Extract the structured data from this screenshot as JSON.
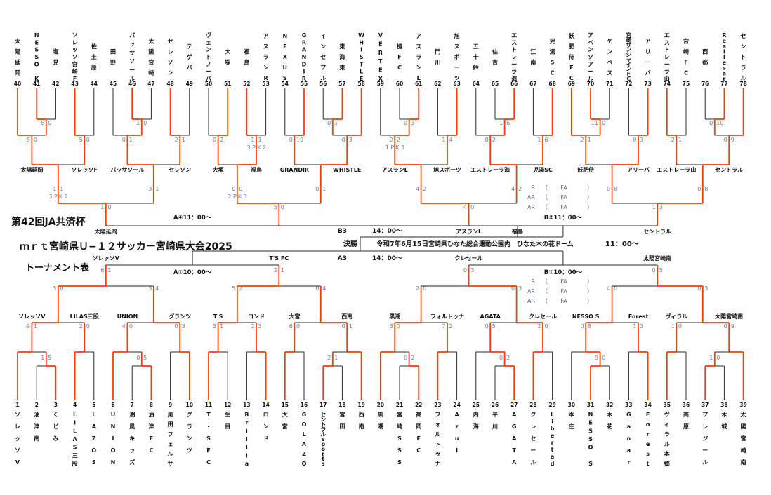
{
  "header": {
    "line1": "第42回JA共済杯",
    "line2": "ｍｒｔ宮崎県Ｕ−１２サッカー宮崎県大会2025",
    "line3": "トーナメント表"
  },
  "final_info": {
    "label": "決勝",
    "date": "令和7年6月15日",
    "venue": "宮崎県ひなた総合運動公園内　ひなた木の花ドーム",
    "time": "11：00～"
  },
  "center_matches": {
    "b3": {
      "code": "B3",
      "time": "14：00～"
    },
    "a3": {
      "code": "A3",
      "time": "14：00～"
    }
  },
  "referee": {
    "rows": [
      "R",
      "AR",
      "AR"
    ],
    "value": "FA",
    "open": "（",
    "close": "）"
  },
  "colors": {
    "accent": "#ff3c00",
    "line": "#2b2b2b",
    "score": "#6d7b9c"
  },
  "teams": [
    {
      "n": 1,
      "name": "ソレッソV"
    },
    {
      "n": 2,
      "name": "油津南"
    },
    {
      "n": 3,
      "name": "くどみ"
    },
    {
      "n": 4,
      "name": "LILAS三股"
    },
    {
      "n": 5,
      "name": "LAZOS"
    },
    {
      "n": 6,
      "name": "UNION"
    },
    {
      "n": 7,
      "name": "潮風キッズ"
    },
    {
      "n": 8,
      "name": "油津FC"
    },
    {
      "n": 9,
      "name": "風田フェルサ"
    },
    {
      "n": 10,
      "name": "グランツ"
    },
    {
      "n": 11,
      "name": "T・SFC"
    },
    {
      "n": 12,
      "name": "生目"
    },
    {
      "n": 13,
      "name": "Brillia"
    },
    {
      "n": 14,
      "name": "ロンド"
    },
    {
      "n": 15,
      "name": "大宮"
    },
    {
      "n": 16,
      "name": "GOLAZO"
    },
    {
      "n": 17,
      "name": "セントラルsports"
    },
    {
      "n": 18,
      "name": "宮田"
    },
    {
      "n": 19,
      "name": "西南"
    },
    {
      "n": 20,
      "name": "黒潮"
    },
    {
      "n": 21,
      "name": "宮崎SSS"
    },
    {
      "n": 22,
      "name": "高岡FC"
    },
    {
      "n": 23,
      "name": "フォルトゥナ"
    },
    {
      "n": 24,
      "name": "Azul"
    },
    {
      "n": 25,
      "name": "内海"
    },
    {
      "n": 26,
      "name": "平川"
    },
    {
      "n": 27,
      "name": "AGATA"
    },
    {
      "n": 28,
      "name": "クレセール"
    },
    {
      "n": 29,
      "name": "Libertad"
    },
    {
      "n": 30,
      "name": "本庄"
    },
    {
      "n": 31,
      "name": "NESSO S"
    },
    {
      "n": 32,
      "name": "木花"
    },
    {
      "n": 33,
      "name": "Ganar"
    },
    {
      "n": 34,
      "name": "Forest"
    },
    {
      "n": 35,
      "name": "ヴィラル本郷"
    },
    {
      "n": 36,
      "name": "高原"
    },
    {
      "n": 37,
      "name": "プレジール"
    },
    {
      "n": 38,
      "name": "木城"
    },
    {
      "n": 39,
      "name": "太陽宮崎南"
    },
    {
      "n": 40,
      "name": "太陽延岡"
    },
    {
      "n": 41,
      "name": "NESSO K"
    },
    {
      "n": 42,
      "name": "塩見"
    },
    {
      "n": 43,
      "name": "ソレッソ宮崎F"
    },
    {
      "n": 44,
      "name": "佐土原"
    },
    {
      "n": 45,
      "name": "田野"
    },
    {
      "n": 46,
      "name": "パッサソール"
    },
    {
      "n": 47,
      "name": "太陽宮崎"
    },
    {
      "n": 48,
      "name": "セレソン"
    },
    {
      "n": 49,
      "name": "テゲバ"
    },
    {
      "n": 50,
      "name": "ヴェントノーバ"
    },
    {
      "n": 51,
      "name": "大塚"
    },
    {
      "n": 52,
      "name": "福島"
    },
    {
      "n": 53,
      "name": "アスランR"
    },
    {
      "n": 54,
      "name": "NEXUS"
    },
    {
      "n": 55,
      "name": "GRANDIR"
    },
    {
      "n": 56,
      "name": "インセプル"
    },
    {
      "n": 57,
      "name": "東海東"
    },
    {
      "n": 58,
      "name": "WHISTLE"
    },
    {
      "n": 59,
      "name": "VERTEX"
    },
    {
      "n": 60,
      "name": "檍FC"
    },
    {
      "n": 61,
      "name": "アスランL"
    },
    {
      "n": 62,
      "name": "門川"
    },
    {
      "n": 63,
      "name": "旭スポーツ"
    },
    {
      "n": 64,
      "name": "五十鈴"
    },
    {
      "n": 65,
      "name": "住吉"
    },
    {
      "n": 66,
      "name": "エストレーラ海"
    },
    {
      "n": 67,
      "name": "江南"
    },
    {
      "n": 68,
      "name": "児湯SC"
    },
    {
      "n": 69,
      "name": "飫肥侍FC"
    },
    {
      "n": 70,
      "name": "アベンソアール"
    },
    {
      "n": 71,
      "name": "ケンペス"
    },
    {
      "n": 72,
      "name": "宮崎サンシャインFC"
    },
    {
      "n": 73,
      "name": "アリーバ"
    },
    {
      "n": 74,
      "name": "エストレーラ山"
    },
    {
      "n": 75,
      "name": "宮崎FC"
    },
    {
      "n": 76,
      "name": "西都"
    },
    {
      "n": 77,
      "name": "Resileser"
    },
    {
      "n": 78,
      "name": "セントラル"
    }
  ],
  "top_half": {
    "first": 40,
    "quadrants": [
      {
        "subtrees": [
          {
            "tree": [
              40,
              [
                41,
                42
              ]
            ],
            "inner": {
              "s": "8|0",
              "w": "L"
            },
            "final": {
              "s": "5|0",
              "w": "L"
            },
            "label": "太陽延岡"
          },
          {
            "tree": [
              43,
              44
            ],
            "final": {
              "s": "5|0",
              "w": "L"
            },
            "label": "ソレッソF"
          },
          {
            "tree": [
              45,
              [
                46,
                47
              ]
            ],
            "inner": {
              "s": "1|0",
              "w": "L"
            },
            "final": {
              "s": "0|1",
              "w": "R"
            },
            "label": "パッサソール"
          },
          {
            "tree": [
              48,
              49
            ],
            "final": {
              "s": "2|1",
              "w": "L"
            },
            "label": "セレソン"
          }
        ],
        "qf": [
          {
            "s": "1|1",
            "pk": [
              "3",
              "2"
            ],
            "w": "L"
          },
          {
            "s": "3|1",
            "w": "L"
          }
        ],
        "semi": {
          "s": "1|0",
          "w": "L"
        }
      },
      {
        "subtrees": [
          {
            "tree": [
              50,
              51
            ],
            "final": {
              "s": "0|2",
              "w": "R"
            },
            "label": "大塚"
          },
          {
            "tree": [
              52,
              53
            ],
            "final": {
              "s": "1|1",
              "pk": [
                "3",
                "2"
              ],
              "w": "L"
            },
            "label": "福島"
          },
          {
            "tree": [
              54,
              55
            ],
            "final": {
              "s": "0|10",
              "w": "R"
            },
            "label": "GRANDIR"
          },
          {
            "tree": [
              [
                56,
                57
              ],
              58
            ],
            "inner": {
              "s": "0|1",
              "w": "R"
            },
            "final": {
              "s": "0|3",
              "w": "R"
            },
            "label": "WHISTLE"
          }
        ],
        "qf": [
          {
            "s": "0|0",
            "pk": [
              "2",
              "3"
            ],
            "w": "R"
          },
          {
            "s": "0|1",
            "w": "R"
          }
        ],
        "semi": {
          "s": "5|0",
          "w": "L"
        }
      },
      {
        "subtrees": [
          {
            "tree": [
              59,
              [
                60,
                61
              ]
            ],
            "inner": {
              "s": "0|3",
              "w": "R"
            },
            "final": {
              "s": "2|2",
              "pk": [
                "1",
                "3"
              ],
              "w": "R"
            },
            "label": "アスランL"
          },
          {
            "tree": [
              62,
              63
            ],
            "final": {
              "s": "1|4",
              "w": "R"
            },
            "label": "旭スポーツ"
          },
          {
            "tree": [
              64,
              [
                65,
                66
              ]
            ],
            "inner": {
              "s": "1|6",
              "w": "R"
            },
            "final": {
              "s": "0|2",
              "w": "R"
            },
            "label": "エストレーラ海"
          },
          {
            "tree": [
              67,
              68
            ],
            "final": {
              "s": "1|6",
              "w": "R"
            },
            "label": "児湯SC"
          }
        ],
        "qf": [
          {
            "s": "4|2",
            "w": "L"
          },
          {
            "s": "4|2",
            "w": "L"
          }
        ],
        "semi": {
          "s": "4|0",
          "w": "L"
        }
      },
      {
        "subtrees": [
          {
            "tree": [
              69,
              [
                70,
                71
              ]
            ],
            "inner": {
              "s": "11|0",
              "w": "L"
            },
            "final": {
              "s": "2|1",
              "w": "L"
            },
            "label": "飫肥侍"
          },
          {
            "tree": [
              72,
              73
            ],
            "final": {
              "s": "0|3",
              "w": "R"
            },
            "label": "アリーバ"
          },
          {
            "tree": [
              74,
              75
            ],
            "final": {
              "s": "2|1",
              "w": "L"
            },
            "label": "エストレーラ山"
          },
          {
            "tree": [
              [
                76,
                77
              ],
              78
            ],
            "inner": {
              "s": "0|10",
              "w": "R"
            },
            "final": {
              "s": "0|9",
              "w": "R"
            },
            "label": "セントラル"
          }
        ],
        "qf": [
          {
            "s": "0|8",
            "w": "R"
          },
          {
            "s": "0|8",
            "w": "R"
          }
        ],
        "semi": {
          "s": "1|3",
          "w": "R"
        }
      }
    ],
    "hf": [
      {
        "code": "A④11：00～",
        "left": "太陽延岡",
        "right": "福島",
        "extendRight": 737
      },
      {
        "code": "B②11：00～",
        "left": "アスランL",
        "right": "セントラル"
      }
    ]
  },
  "bottom_half": {
    "first": 1,
    "quadrants": [
      {
        "subtrees": [
          {
            "tree": [
              1,
              [
                2,
                3
              ]
            ],
            "inner": {
              "s": "1|5",
              "w": "R"
            },
            "final": {
              "s": "9|1",
              "w": "L"
            },
            "label": "ソレッソV"
          },
          {
            "tree": [
              4,
              5
            ],
            "final": {
              "s": "2|0",
              "w": "L"
            },
            "label": "LILAS三股"
          },
          {
            "tree": [
              6,
              [
                7,
                8
              ]
            ],
            "inner": {
              "s": "0|5",
              "w": "R"
            },
            "final": {
              "s": "4|0",
              "w": "L"
            },
            "label": "UNION"
          },
          {
            "tree": [
              9,
              10
            ],
            "final": {
              "s": "0|3",
              "w": "R"
            },
            "label": "グランツ"
          }
        ],
        "qf": [
          {
            "s": "3|0",
            "w": "L"
          },
          {
            "s": "3|4",
            "w": "R"
          }
        ],
        "semi": {
          "s": "6|1",
          "w": "L"
        }
      },
      {
        "subtrees": [
          {
            "tree": [
              11,
              12
            ],
            "final": {
              "s": "3|1",
              "w": "L"
            },
            "label": "T'S"
          },
          {
            "tree": [
              13,
              14
            ],
            "final": {
              "s": "2|3",
              "w": "R"
            },
            "label": "ロンド"
          },
          {
            "tree": [
              15,
              16
            ],
            "final": {
              "s": "6|0",
              "w": "L"
            },
            "label": "大宮"
          },
          {
            "tree": [
              [
                17,
                18
              ],
              19
            ],
            "inner": {
              "s": "2|1",
              "w": "L"
            },
            "final": {
              "s": "0|1",
              "w": "R"
            },
            "label": "西南"
          }
        ],
        "qf": [
          {
            "s": "5|2",
            "w": "L"
          },
          {
            "s": "0|4",
            "w": "R"
          }
        ],
        "semi": {
          "s": "2|1",
          "w": "L"
        }
      },
      {
        "subtrees": [
          {
            "tree": [
              20,
              [
                21,
                22
              ]
            ],
            "inner": {
              "s": "0|2",
              "w": "R"
            },
            "final": {
              "s": "3|0",
              "w": "L"
            },
            "label": "黒潮"
          },
          {
            "tree": [
              23,
              24
            ],
            "final": {
              "s": "7|2",
              "w": "L"
            },
            "label": "フォルトゥナ"
          },
          {
            "tree": [
              25,
              [
                26,
                27
              ]
            ],
            "inner": {
              "s": "0|2",
              "w": "R"
            },
            "final": {
              "s": "0|5",
              "w": "R"
            },
            "label": "AGATA"
          },
          {
            "tree": [
              28,
              29
            ],
            "final": {
              "s": "2|0",
              "w": "L"
            },
            "label": "クレセール"
          }
        ],
        "qf": [
          {
            "s": "2|0",
            "w": "L"
          },
          {
            "s": "0|3",
            "w": "R"
          }
        ],
        "semi": {
          "s": "0|3",
          "w": "R"
        }
      },
      {
        "subtrees": [
          {
            "tree": [
              30,
              [
                31,
                32
              ]
            ],
            "inner": {
              "s": "9|0",
              "w": "L"
            },
            "final": {
              "s": "0|8",
              "w": "R"
            },
            "label": "NESSO S"
          },
          {
            "tree": [
              33,
              34
            ],
            "final": {
              "s": "1|3",
              "w": "R"
            },
            "label": "Forest"
          },
          {
            "tree": [
              35,
              36
            ],
            "final": {
              "s": "1|0",
              "w": "L"
            },
            "label": "ヴィラル"
          },
          {
            "tree": [
              [
                37,
                38
              ],
              39
            ],
            "inner": {
              "s": "1|0",
              "w": "L"
            },
            "final": {
              "s": "0|9",
              "w": "R"
            },
            "label": "太陽宮崎南"
          }
        ],
        "qf": [
          {
            "s": "4|0",
            "w": "L"
          },
          {
            "s": "0|3",
            "w": "R"
          }
        ],
        "semi": {
          "s": "0|5",
          "w": "R"
        }
      }
    ],
    "hf": [
      {
        "code": "A①10：00～",
        "left": "ソレッソV",
        "right": "T'S FC"
      },
      {
        "code": "B①10：00～",
        "left": "クレセール",
        "right": "太陽宮崎南"
      }
    ]
  }
}
